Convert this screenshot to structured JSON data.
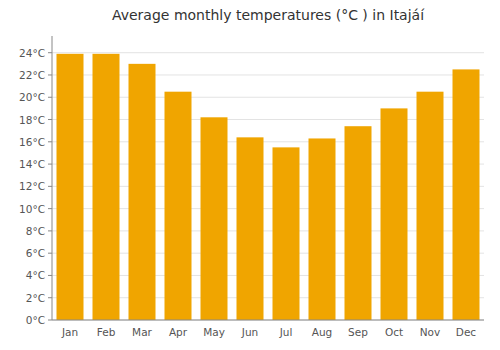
{
  "chart_data": {
    "type": "bar",
    "title": "Average monthly temperatures (°C ) in Itajáí",
    "categories": [
      "Jan",
      "Feb",
      "Mar",
      "Apr",
      "May",
      "Jun",
      "Jul",
      "Aug",
      "Sep",
      "Oct",
      "Nov",
      "Dec"
    ],
    "values": [
      23.9,
      23.9,
      23.0,
      20.5,
      18.2,
      16.4,
      15.5,
      16.3,
      17.4,
      19.0,
      20.5,
      22.5
    ],
    "color": "#F0A500",
    "ylim": [
      0,
      25.5
    ],
    "yticks": [
      {
        "value": 0,
        "label": "0°C"
      },
      {
        "value": 2,
        "label": "2°C"
      },
      {
        "value": 4,
        "label": "4°C"
      },
      {
        "value": 6,
        "label": "6°C"
      },
      {
        "value": 8,
        "label": "8°C"
      },
      {
        "value": 10,
        "label": "10°C"
      },
      {
        "value": 12,
        "label": "12°C"
      },
      {
        "value": 14,
        "label": "14°C"
      },
      {
        "value": 16,
        "label": "16°C"
      },
      {
        "value": 18,
        "label": "18°C"
      },
      {
        "value": 20,
        "label": "20°C"
      },
      {
        "value": 22,
        "label": "22°C"
      },
      {
        "value": 24,
        "label": "24°C"
      }
    ],
    "grid": true
  }
}
